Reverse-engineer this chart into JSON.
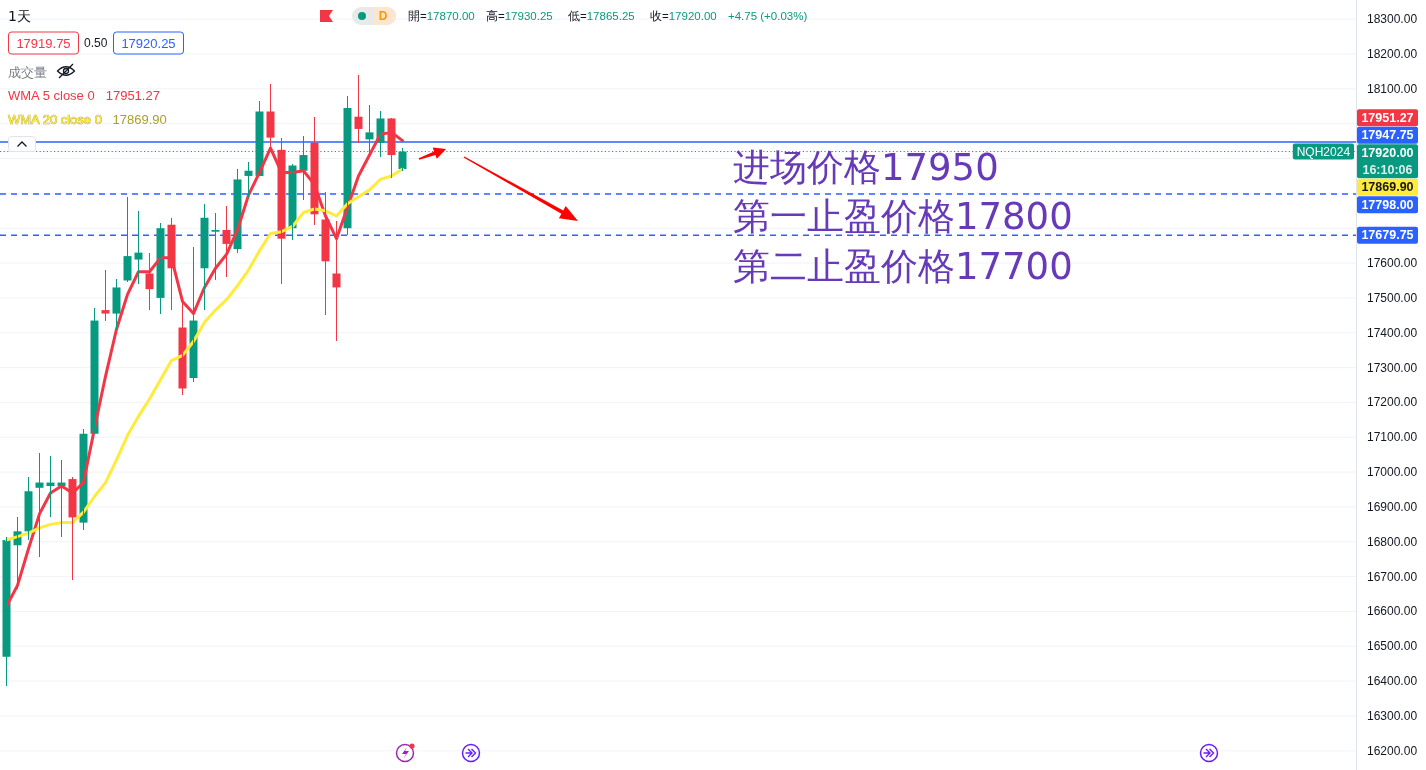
{
  "chart_data": {
    "type": "candlestick",
    "title": "1天",
    "categories": [
      null,
      null,
      null,
      null,
      null,
      null,
      null,
      null,
      null,
      null,
      null,
      null,
      null,
      null,
      null,
      null,
      null,
      null,
      null,
      null,
      null,
      null,
      null,
      null,
      null,
      null,
      null,
      null,
      null,
      null,
      null,
      null,
      null,
      null,
      null,
      null,
      null,
      null,
      null,
      null,
      null,
      null,
      null,
      null,
      null,
      null,
      null,
      null,
      null,
      null,
      null,
      null,
      null,
      null,
      null,
      null,
      null,
      null,
      null,
      null,
      null,
      null,
      null,
      null,
      null,
      null,
      null,
      null,
      null,
      null,
      null,
      null,
      null,
      null,
      null,
      null,
      null,
      null,
      null,
      null,
      null,
      null,
      null,
      null,
      null,
      null,
      null,
      null,
      null,
      null,
      null,
      null,
      null,
      null,
      null,
      null,
      null,
      null,
      null,
      null,
      null,
      null,
      null,
      null,
      null,
      null,
      null,
      null,
      null,
      null,
      null,
      null,
      null,
      null,
      null,
      null,
      null,
      null,
      null,
      null,
      null,
      null,
      null
    ],
    "ohlc": [
      [
        16470,
        16815,
        16385,
        16805
      ],
      [
        16790,
        16870,
        16665,
        16830
      ],
      [
        16830,
        16985,
        16805,
        16945
      ],
      [
        16955,
        17055,
        16755,
        16970
      ],
      [
        16960,
        17045,
        16870,
        16970
      ],
      [
        16960,
        17035,
        16815,
        16970
      ],
      [
        16980,
        16985,
        16690,
        16870
      ],
      [
        16855,
        17125,
        16835,
        17110
      ],
      [
        17110,
        17470,
        17110,
        17435
      ],
      [
        17465,
        17580,
        17435,
        17455
      ],
      [
        17455,
        17555,
        17410,
        17530
      ],
      [
        17550,
        17790,
        17545,
        17620
      ],
      [
        17610,
        17750,
        17540,
        17630
      ],
      [
        17570,
        17630,
        17465,
        17525
      ],
      [
        17500,
        17715,
        17455,
        17700
      ],
      [
        17710,
        17730,
        17465,
        17585
      ],
      [
        17415,
        17485,
        17220,
        17240
      ],
      [
        17270,
        17645,
        17260,
        17435
      ],
      [
        17585,
        17770,
        17465,
        17730
      ],
      [
        17690,
        17745,
        17550,
        17695
      ],
      [
        17695,
        17765,
        17560,
        17655
      ],
      [
        17640,
        17870,
        17630,
        17840
      ],
      [
        17850,
        17890,
        17790,
        17865
      ],
      [
        17850,
        18065,
        17850,
        18035
      ],
      [
        18035,
        18115,
        17930,
        17960
      ],
      [
        17925,
        17960,
        17540,
        17670
      ],
      [
        17700,
        17885,
        17665,
        17880
      ],
      [
        17865,
        17965,
        17780,
        17910
      ],
      [
        17945,
        18020,
        17710,
        17740
      ],
      [
        17725,
        17805,
        17450,
        17605
      ],
      [
        17570,
        17720,
        17375,
        17530
      ],
      [
        17700,
        18080,
        17680,
        18045
      ],
      [
        18020,
        18140,
        17945,
        17985
      ],
      [
        17955,
        18055,
        17915,
        17975
      ],
      [
        17945,
        18035,
        17905,
        18015
      ],
      [
        18015,
        18015,
        17845,
        17910
      ],
      [
        17870,
        17930.25,
        17865.25,
        17920
      ],
      null,
      null,
      null,
      null,
      null,
      null,
      null,
      null,
      null,
      null,
      null,
      null,
      null,
      null,
      null,
      null,
      null,
      null,
      null,
      null,
      null,
      null,
      null,
      null,
      null,
      null,
      null,
      null,
      null,
      null,
      null,
      null,
      null,
      null,
      null,
      null,
      null,
      null,
      null,
      null,
      null,
      null,
      null,
      null,
      null,
      null,
      null,
      null,
      null,
      null,
      null,
      null,
      null,
      null,
      null,
      null,
      null,
      null,
      null,
      null,
      null,
      null,
      null,
      null,
      null,
      null,
      null,
      null,
      null,
      null,
      null,
      null,
      null,
      null,
      null,
      null,
      null,
      null,
      null,
      null,
      null,
      null,
      null,
      null,
      null,
      null
    ],
    "series": [
      {
        "name": "WMA 5 close 0",
        "type": "line",
        "color": "#f23645",
        "values": [
          16615,
          16675,
          16780,
          16880,
          16940,
          16960,
          16940,
          16970,
          17125,
          17275,
          17410,
          17510,
          17575,
          17575,
          17615,
          17615,
          17490,
          17455,
          17530,
          17585,
          17625,
          17695,
          17795,
          17860,
          17930,
          17860,
          17860,
          17865,
          17825,
          17735,
          17670,
          17760,
          17850,
          17910,
          17970,
          17975,
          17951.27,
          null,
          null,
          null,
          null,
          null,
          null,
          null,
          null,
          null,
          null,
          null,
          null,
          null,
          null,
          null,
          null,
          null,
          null,
          null,
          null,
          null,
          null,
          null,
          null,
          null,
          null,
          null,
          null,
          null,
          null,
          null,
          null,
          null,
          null,
          null,
          null,
          null,
          null,
          null,
          null,
          null,
          null,
          null,
          null,
          null,
          null,
          null,
          null,
          null,
          null,
          null,
          null,
          null,
          null,
          null,
          null,
          null,
          null,
          null,
          null,
          null,
          null,
          null,
          null,
          null,
          null,
          null,
          null,
          null,
          null,
          null,
          null,
          null,
          null,
          null,
          null,
          null,
          null,
          null,
          null,
          null,
          null,
          null,
          null,
          null,
          null
        ]
      },
      {
        "name": "WMA 20 close 0",
        "type": "line",
        "color": "#ffeb3b",
        "values": [
          16805,
          16815,
          16825,
          16840,
          16850,
          16855,
          16855,
          16885,
          16930,
          16970,
          17035,
          17105,
          17160,
          17210,
          17265,
          17320,
          17335,
          17375,
          17430,
          17465,
          17495,
          17535,
          17580,
          17635,
          17685,
          17690,
          17705,
          17745,
          17755,
          17750,
          17735,
          17770,
          17790,
          17810,
          17840,
          17850,
          17869.9,
          null,
          null,
          null,
          null,
          null,
          null,
          null,
          null,
          null,
          null,
          null,
          null,
          null,
          null,
          null,
          null,
          null,
          null,
          null,
          null,
          null,
          null,
          null,
          null,
          null,
          null,
          null,
          null,
          null,
          null,
          null,
          null,
          null,
          null,
          null,
          null,
          null,
          null,
          null,
          null,
          null,
          null,
          null,
          null,
          null,
          null,
          null,
          null,
          null,
          null,
          null,
          null,
          null,
          null,
          null,
          null,
          null,
          null,
          null,
          null,
          null,
          null,
          null,
          null,
          null,
          null,
          null,
          null,
          null,
          null,
          null,
          null,
          null,
          null,
          null,
          null,
          null,
          null,
          null,
          null,
          null,
          null,
          null,
          null,
          null,
          null
        ]
      }
    ],
    "ylim": [
      16145,
      18355
    ],
    "yticks": [
      {
        "value": 16200,
        "label": "16200.00"
      },
      {
        "value": 16300,
        "label": "16300.00"
      },
      {
        "value": 16400,
        "label": "16400.00"
      },
      {
        "value": 16500,
        "label": "16500.00"
      },
      {
        "value": 16600,
        "label": "16600.00"
      },
      {
        "value": 16700,
        "label": "16700.00"
      },
      {
        "value": 16800,
        "label": "16800.00"
      },
      {
        "value": 16900,
        "label": "16900.00"
      },
      {
        "value": 17000,
        "label": "17000.00"
      },
      {
        "value": 17100,
        "label": "17100.00"
      },
      {
        "value": 17200,
        "label": "17200.00"
      },
      {
        "value": 17300,
        "label": "17300.00"
      },
      {
        "value": 17400,
        "label": "17400.00"
      },
      {
        "value": 17500,
        "label": "17500.00"
      },
      {
        "value": 17600,
        "label": "17600.00"
      },
      {
        "value": 17700,
        "label": null
      },
      {
        "value": 17800,
        "label": null
      },
      {
        "value": 17900,
        "label": null
      },
      {
        "value": 18000,
        "label": null
      },
      {
        "value": 18100,
        "label": "18100.00"
      },
      {
        "value": 18200,
        "label": "18200.00"
      },
      {
        "value": 18300,
        "label": "18300.00"
      }
    ],
    "grid": "y",
    "legend": "top left",
    "ref_lines": [
      {
        "axis": "y",
        "value": 17947.75,
        "label": "17947.75",
        "color": "#2962ff",
        "line_style": "solid"
      },
      {
        "axis": "y",
        "value": 17920,
        "label": "17920.00",
        "color": "#089981",
        "line_style": "dotted"
      },
      {
        "axis": "y",
        "value": 17798,
        "label": "17798.00",
        "color": "#2962ff",
        "line_style": "dashed"
      },
      {
        "axis": "y",
        "value": 17679.75,
        "label": "17679.75",
        "color": "#2962ff",
        "line_style": "dashed"
      }
    ],
    "annotations": [
      "17919.75",
      "0.50",
      "17920.25",
      "成交量",
      "開=17870.00",
      "高=17930.25",
      "低=17865.25",
      "收=17920.00",
      "+4.75 (+0.03%)",
      "D",
      {
        "text": "NQH2024",
        "y": 17920
      },
      "16:10:06",
      "进场价格17950",
      "第一止盈价格17800",
      "第二止盈价格17700",
      "17951.27",
      "17869.90",
      "17951.27",
      "17869.90"
    ]
  }
}
